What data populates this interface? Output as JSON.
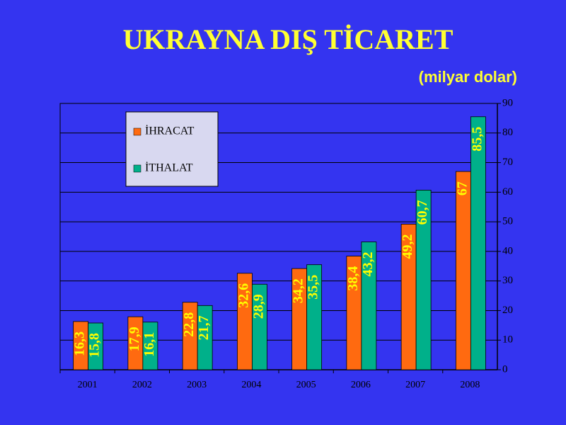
{
  "chart_data": {
    "type": "bar",
    "title": "UKRAYNA DIŞ TİCARET",
    "subtitle": "(milyar dolar)",
    "categories": [
      "2001",
      "2002",
      "2003",
      "2004",
      "2005",
      "2006",
      "2007",
      "2008"
    ],
    "series": [
      {
        "name": "İHRACAT",
        "color": "#ff6a10",
        "values": [
          16.3,
          17.9,
          22.8,
          32.6,
          34.2,
          38.4,
          49.2,
          67
        ],
        "value_labels": [
          "16,3",
          "17,9",
          "22,8",
          "32,6",
          "34,2",
          "38,4",
          "49,2",
          "67"
        ]
      },
      {
        "name": "İTHALAT",
        "color": "#00b08a",
        "values": [
          15.8,
          16.1,
          21.7,
          28.9,
          35.5,
          43.2,
          60.7,
          85.5
        ],
        "value_labels": [
          "15,8",
          "16,1",
          "21,7",
          "28,9",
          "35,5",
          "43,2",
          "60,7",
          "85,5"
        ]
      }
    ],
    "ylim": [
      0,
      90
    ],
    "yticks": [
      0,
      10,
      20,
      30,
      40,
      50,
      60,
      70,
      80,
      90
    ],
    "y_axis_side": "right",
    "grid": true,
    "legend": "upper left"
  }
}
